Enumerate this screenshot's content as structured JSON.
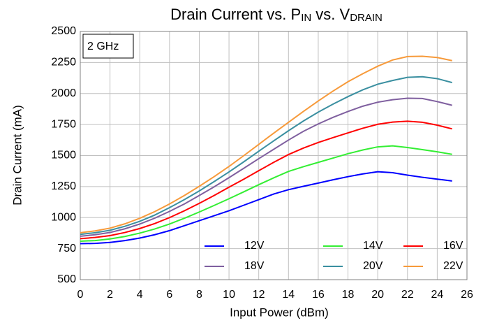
{
  "chart_data": {
    "type": "line",
    "title_parts": [
      {
        "text": "Drain Current vs. P"
      },
      {
        "text": "IN",
        "sub": true
      },
      {
        "text": " vs. V"
      },
      {
        "text": "DRAIN",
        "sub": true
      }
    ],
    "annotation": "2 GHz",
    "x_label": "Input Power (dBm)",
    "y_label": "Drain Current (mA)",
    "x": [
      0,
      1,
      2,
      3,
      4,
      5,
      6,
      7,
      8,
      9,
      10,
      11,
      12,
      13,
      14,
      15,
      16,
      17,
      18,
      19,
      20,
      21,
      22,
      23,
      24,
      25
    ],
    "series": [
      {
        "name": "12V",
        "color": "#0000ff",
        "values": [
          790,
          792,
          800,
          815,
          835,
          862,
          895,
          935,
          975,
          1015,
          1055,
          1100,
          1145,
          1190,
          1225,
          1252,
          1278,
          1305,
          1330,
          1352,
          1370,
          1362,
          1342,
          1325,
          1310,
          1295
        ]
      },
      {
        "name": "14V",
        "color": "#33ee33",
        "values": [
          810,
          815,
          828,
          848,
          875,
          908,
          948,
          995,
          1045,
          1098,
          1152,
          1208,
          1265,
          1320,
          1372,
          1410,
          1445,
          1480,
          1515,
          1545,
          1570,
          1578,
          1565,
          1548,
          1530,
          1510
        ]
      },
      {
        "name": "16V",
        "color": "#ff0000",
        "values": [
          830,
          840,
          855,
          880,
          912,
          952,
          1000,
          1055,
          1115,
          1178,
          1245,
          1310,
          1378,
          1445,
          1508,
          1560,
          1605,
          1645,
          1683,
          1720,
          1752,
          1770,
          1777,
          1768,
          1745,
          1715
        ]
      },
      {
        "name": "18V",
        "color": "#7f5f9f",
        "values": [
          850,
          862,
          880,
          910,
          948,
          995,
          1050,
          1110,
          1178,
          1248,
          1322,
          1398,
          1475,
          1550,
          1625,
          1695,
          1755,
          1808,
          1855,
          1898,
          1930,
          1950,
          1962,
          1960,
          1935,
          1905
        ]
      },
      {
        "name": "20V",
        "color": "#3a8fa0",
        "values": [
          865,
          878,
          898,
          930,
          970,
          1020,
          1080,
          1145,
          1215,
          1290,
          1368,
          1450,
          1535,
          1618,
          1700,
          1778,
          1850,
          1915,
          1975,
          2030,
          2075,
          2105,
          2130,
          2135,
          2120,
          2088
        ]
      },
      {
        "name": "22V",
        "color": "#f79a3a",
        "values": [
          878,
          893,
          915,
          950,
          995,
          1048,
          1110,
          1178,
          1252,
          1330,
          1412,
          1500,
          1590,
          1680,
          1768,
          1855,
          1940,
          2020,
          2095,
          2160,
          2220,
          2270,
          2298,
          2300,
          2290,
          2265
        ]
      }
    ],
    "xlim": [
      0,
      26
    ],
    "xticks": [
      0,
      2,
      4,
      6,
      8,
      10,
      12,
      14,
      16,
      18,
      20,
      22,
      24,
      26
    ],
    "ylim": [
      500,
      2500
    ],
    "yticks": [
      500,
      750,
      1000,
      1250,
      1500,
      1750,
      2000,
      2250,
      2500
    ],
    "grid": true,
    "legend": "lower-right"
  }
}
